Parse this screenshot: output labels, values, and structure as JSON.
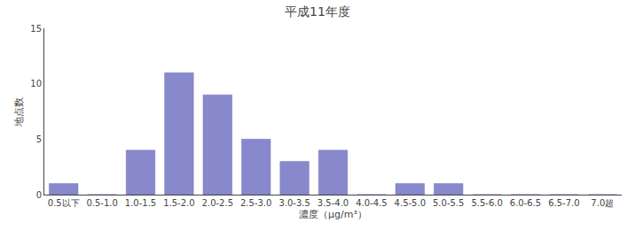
{
  "chart_data": {
    "type": "bar",
    "title": "平成11年度",
    "xlabel": "濃度（μg/m³）",
    "ylabel": "地点数",
    "categories": [
      "0.5以下",
      "0.5-1.0",
      "1.0-1.5",
      "1.5-2.0",
      "2.0-2.5",
      "2.5-3.0",
      "3.0-3.5",
      "3.5-4.0",
      "4.0-4.5",
      "4.5-5.0",
      "5.0-5.5",
      "5.5-6.0",
      "6.0-6.5",
      "6.5-7.0",
      "7.0超"
    ],
    "values": [
      1,
      0,
      4,
      11,
      9,
      5,
      3,
      4,
      0,
      1,
      1,
      0,
      0,
      0,
      0
    ],
    "color": "#8888cc",
    "ylim": [
      0,
      15
    ],
    "yticks": [
      0,
      5,
      10,
      15
    ],
    "grid": false
  }
}
